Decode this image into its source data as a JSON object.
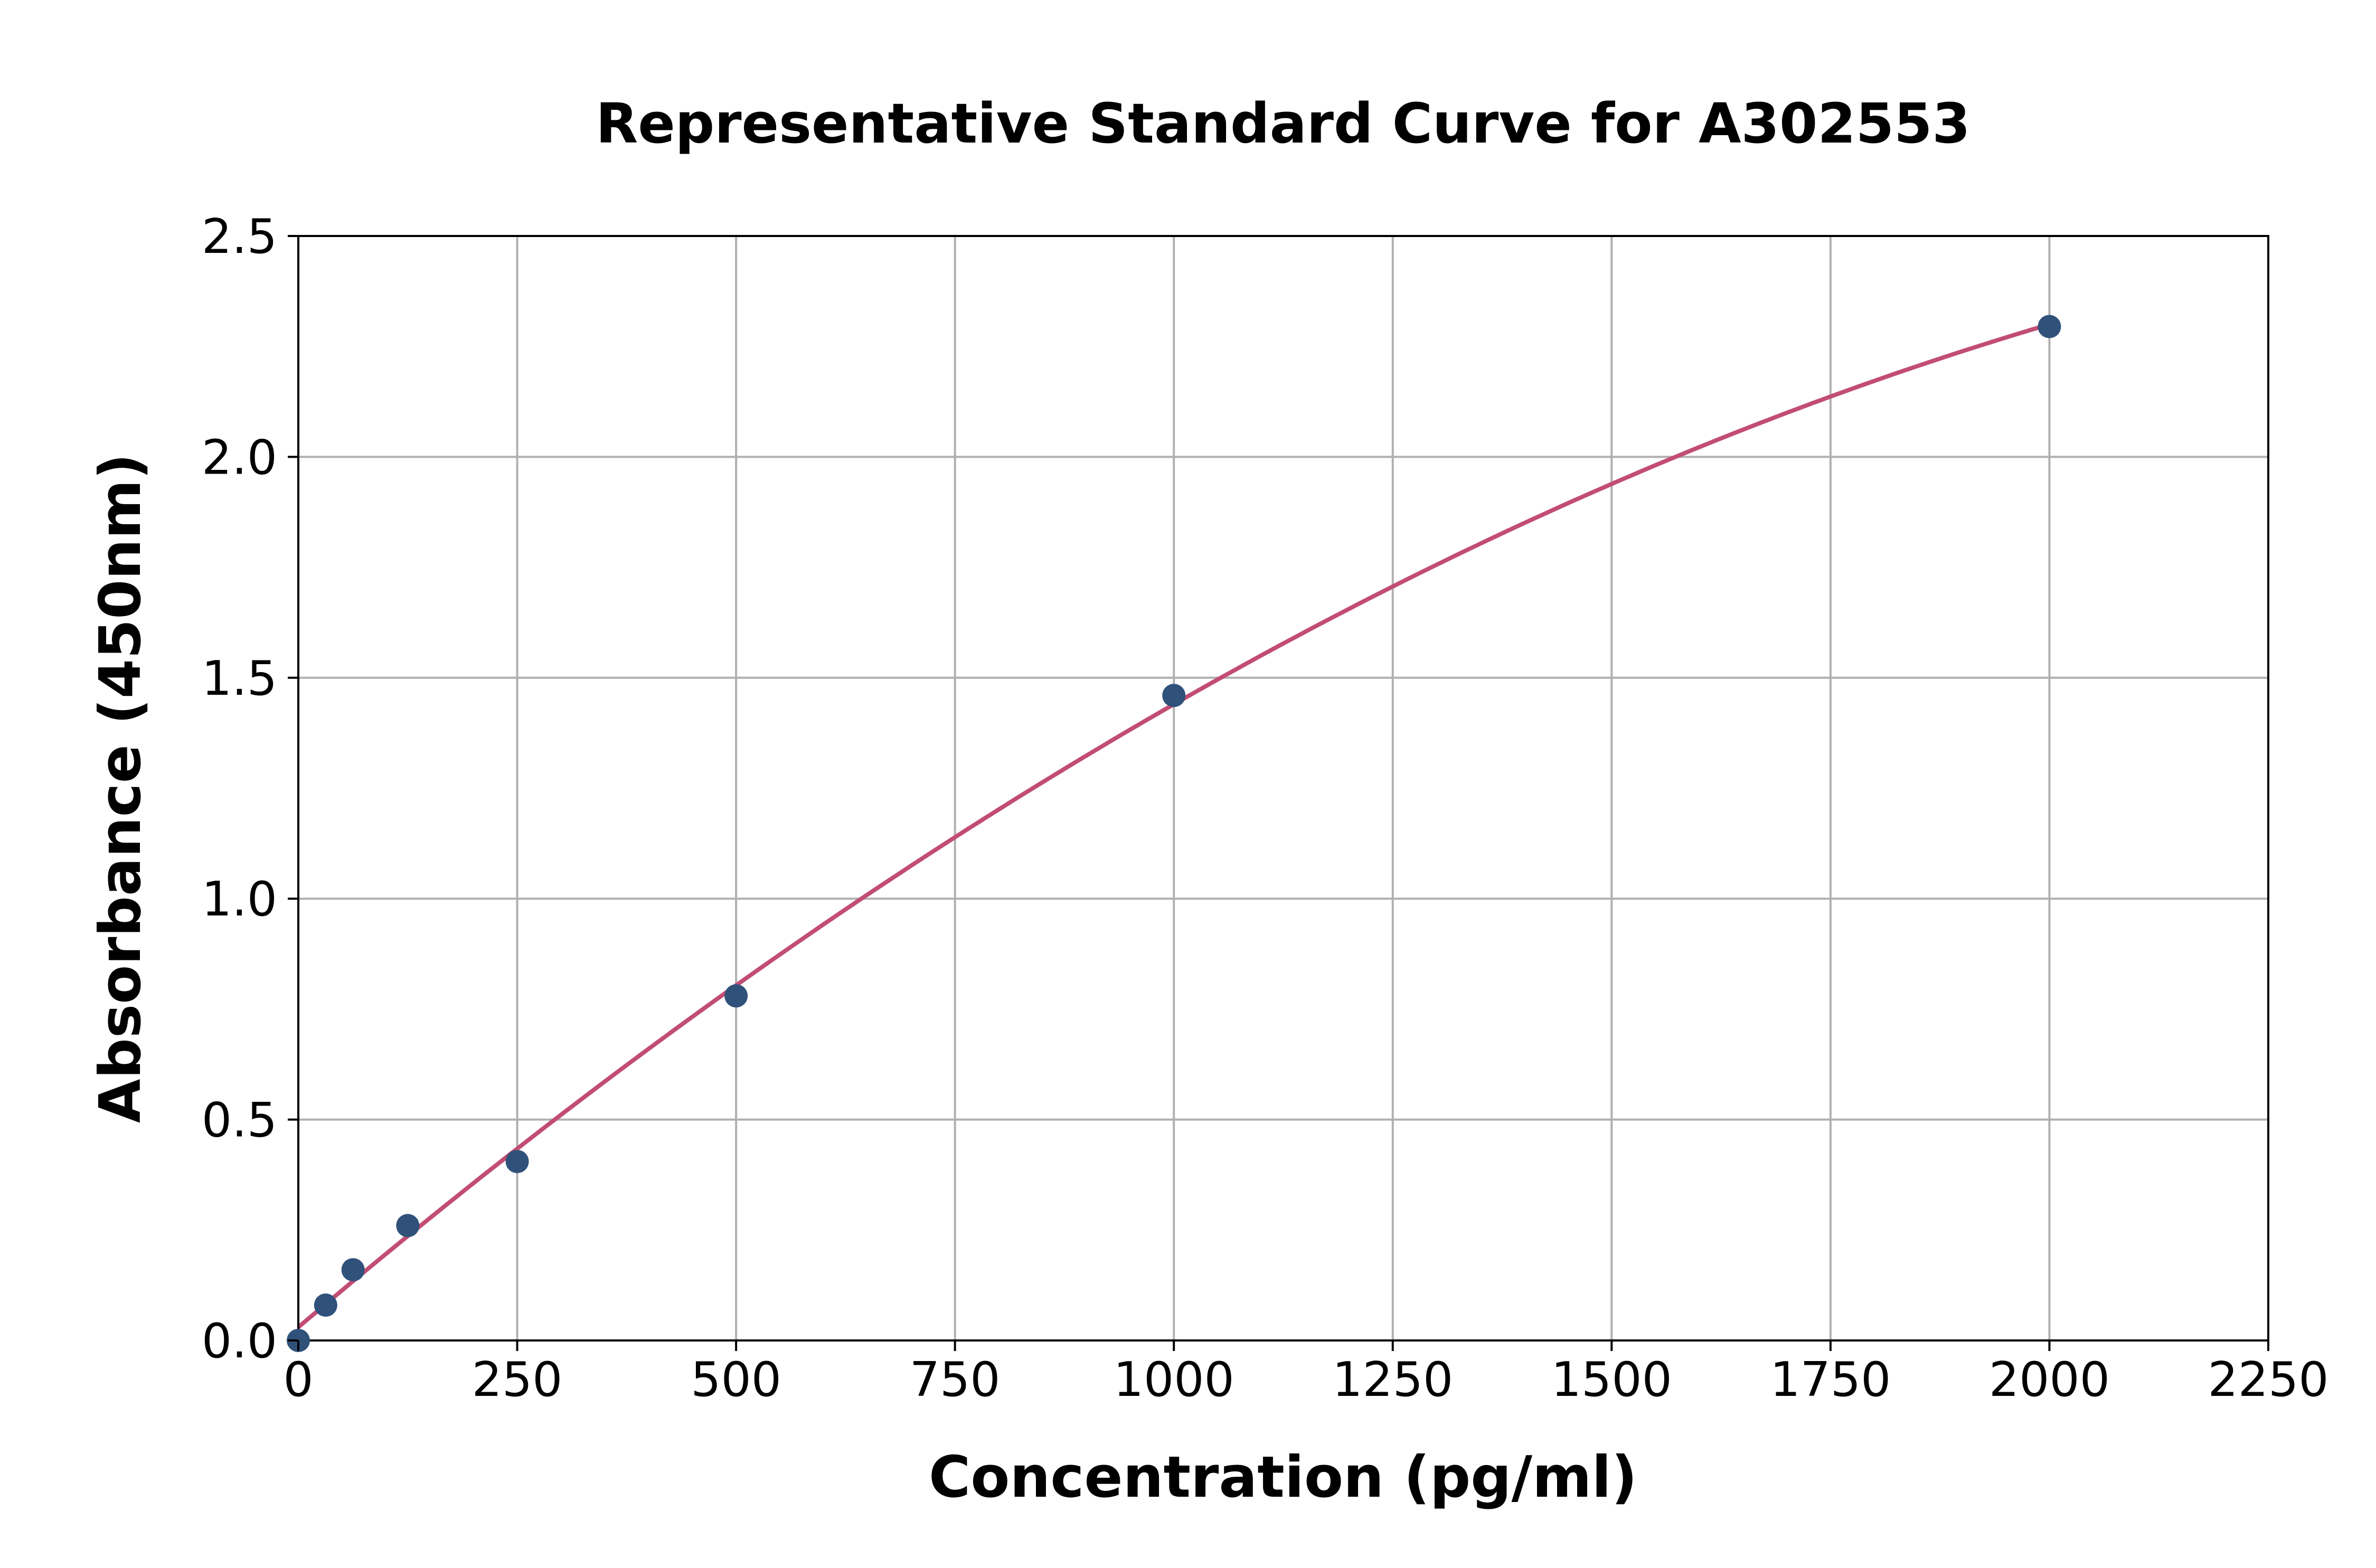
{
  "chart_data": {
    "type": "scatter",
    "title": "Representative Standard Curve for A302553",
    "xlabel": "Concentration (pg/ml)",
    "ylabel": "Absorbance (450nm)",
    "xlim": [
      0,
      2250
    ],
    "ylim": [
      0,
      2.5
    ],
    "xticks": [
      0,
      250,
      500,
      750,
      1000,
      1250,
      1500,
      1750,
      2000,
      2250
    ],
    "yticks": [
      0.0,
      0.5,
      1.0,
      1.5,
      2.0,
      2.5
    ],
    "xtick_labels": [
      "0",
      "250",
      "500",
      "750",
      "1000",
      "1250",
      "1500",
      "1750",
      "2000",
      "2250"
    ],
    "ytick_labels": [
      "0.0",
      "0.5",
      "1.0",
      "1.5",
      "2.0",
      "2.5"
    ],
    "grid": true,
    "series": [
      {
        "type": "scatter",
        "x": [
          0,
          31.25,
          62.5,
          125,
          250,
          500,
          1000,
          2000
        ],
        "y": [
          0.0,
          0.08,
          0.16,
          0.26,
          0.405,
          0.78,
          1.46,
          2.295
        ],
        "color": "#30527a"
      },
      {
        "type": "line",
        "x": [
          0,
          250,
          500,
          750,
          1000,
          1250,
          1500,
          1750,
          2000
        ],
        "y": [
          0.03,
          0.43,
          0.81,
          1.14,
          1.44,
          1.69,
          1.92,
          2.12,
          2.3
        ],
        "color": "#c24d74"
      }
    ]
  }
}
